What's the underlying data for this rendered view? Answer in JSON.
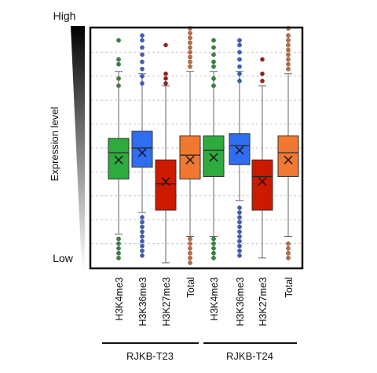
{
  "chart_data": {
    "type": "box",
    "title": "",
    "ylabel": "Expression level",
    "y_top_label": "High",
    "y_bottom_label": "Low",
    "ylim": [
      0,
      10
    ],
    "grid": "horizontal dashed",
    "categories": [
      "H3K4me3",
      "H3K36me3",
      "H3K27me3",
      "Total",
      "H3K4me3",
      "H3K36me3",
      "H3K27me3",
      "Total"
    ],
    "groups": [
      {
        "name": "RJKB-T23",
        "members": [
          0,
          1,
          2,
          3
        ]
      },
      {
        "name": "RJKB-T24",
        "members": [
          4,
          5,
          6,
          7
        ]
      }
    ],
    "boxes": [
      {
        "label": "H3K4me3",
        "color": "#2eaa3e",
        "outlier_color": "#2f8a3a",
        "q1": 3.7,
        "median": 4.8,
        "q3": 5.4,
        "mean": 4.5,
        "whisker_low": 1.4,
        "whisker_high": 8.2,
        "outliers": [
          0.4,
          0.6,
          0.8,
          1.0,
          1.2,
          7.6,
          7.9,
          8.5,
          8.7,
          9.5
        ]
      },
      {
        "label": "H3K36me3",
        "color": "#2f6ef2",
        "outlier_color": "#3b5fc9",
        "q1": 4.2,
        "median": 5.0,
        "q3": 5.7,
        "mean": 4.8,
        "whisker_low": 2.3,
        "whisker_high": 8.1,
        "outliers": [
          0.5,
          0.7,
          0.9,
          1.1,
          1.3,
          1.5,
          1.7,
          1.9,
          2.1,
          7.7,
          8.0,
          8.3,
          8.6,
          8.9,
          9.2,
          9.5,
          9.7
        ]
      },
      {
        "label": "H3K27me3",
        "color": "#cc1a00",
        "outlier_color": "#a01a1a",
        "q1": 2.4,
        "median": 3.5,
        "q3": 4.5,
        "mean": 3.6,
        "whisker_low": 0.2,
        "whisker_high": 7.6,
        "outliers": [
          7.7,
          7.9,
          8.1,
          9.3
        ]
      },
      {
        "label": "Total",
        "color": "#f07830",
        "outlier_color": "#c96a3a",
        "q1": 3.7,
        "median": 4.7,
        "q3": 5.5,
        "mean": 4.5,
        "whisker_low": 1.3,
        "whisker_high": 8.2,
        "outliers": [
          0.2,
          0.4,
          0.6,
          0.8,
          1.0,
          1.2,
          8.4,
          8.6,
          8.8,
          9.0,
          9.2,
          9.4,
          9.6,
          9.8,
          10.0
        ]
      },
      {
        "label": "H3K4me3",
        "color": "#2eaa3e",
        "outlier_color": "#2f8a3a",
        "q1": 3.8,
        "median": 4.9,
        "q3": 5.5,
        "mean": 4.6,
        "whisker_low": 1.3,
        "whisker_high": 8.2,
        "outliers": [
          0.4,
          0.6,
          0.8,
          1.0,
          1.2,
          7.6,
          7.9,
          8.4,
          8.6,
          8.9,
          9.2,
          9.5
        ]
      },
      {
        "label": "H3K36me3",
        "color": "#2f6ef2",
        "outlier_color": "#3b5fc9",
        "q1": 4.3,
        "median": 5.1,
        "q3": 5.6,
        "mean": 4.9,
        "whisker_low": 2.8,
        "whisker_high": 8.2,
        "outliers": [
          0.5,
          0.7,
          0.9,
          1.1,
          1.3,
          1.5,
          1.7,
          1.9,
          2.1,
          2.3,
          2.5,
          7.8,
          8.1,
          8.4,
          8.7,
          9.0,
          9.3,
          9.5
        ]
      },
      {
        "label": "H3K27me3",
        "color": "#cc1a00",
        "outlier_color": "#a01a1a",
        "q1": 2.4,
        "median": 3.8,
        "q3": 4.5,
        "mean": 3.6,
        "whisker_low": 0.4,
        "whisker_high": 7.6,
        "outliers": [
          7.8,
          8.1,
          8.7
        ]
      },
      {
        "label": "Total",
        "color": "#f07830",
        "outlier_color": "#c96a3a",
        "q1": 3.8,
        "median": 4.8,
        "q3": 5.5,
        "mean": 4.5,
        "whisker_low": 1.3,
        "whisker_high": 8.1,
        "outliers": [
          0.4,
          0.6,
          0.8,
          1.0,
          8.3,
          8.5,
          8.7,
          8.9,
          9.1,
          9.3,
          9.5,
          9.7,
          10.0
        ]
      }
    ]
  }
}
